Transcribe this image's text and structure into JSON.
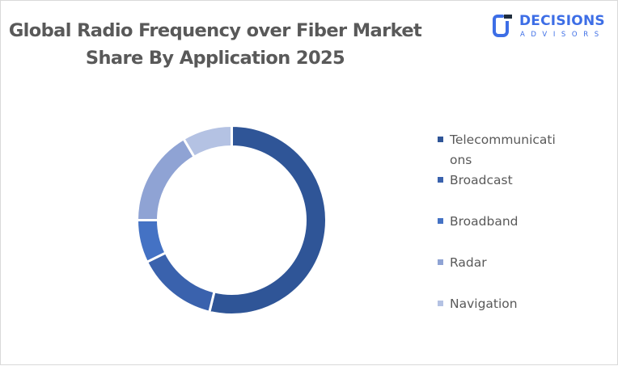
{
  "chart_data": {
    "type": "pie",
    "subtype": "donut",
    "title": "Global Radio Frequency over Fiber Market Share By Application 2025",
    "categories": [
      "Telecommunications",
      "Broadcast",
      "Broadband",
      "Radar",
      "Navigation"
    ],
    "values": [
      53.8,
      13.9,
      7.3,
      16.5,
      8.5
    ],
    "unit": "%",
    "colors": [
      "#2f5597",
      "#3a62ad",
      "#4472c4",
      "#8fa3d4",
      "#b4c2e3"
    ],
    "legend_position": "right",
    "data_labels": false
  },
  "header": {
    "title_line1": "Global Radio Frequency over Fiber Market",
    "title_line2": "Share By Application 2025"
  },
  "logo": {
    "name": "DECISIONS",
    "tagline": "ADVISORS",
    "color": "#3d6ee6"
  },
  "legend": {
    "items": [
      {
        "label": "Telecommunications",
        "color": "#2f5597"
      },
      {
        "label": "Broadcast",
        "color": "#3a62ad"
      },
      {
        "label": "Broadband",
        "color": "#4472c4"
      },
      {
        "label": "Radar",
        "color": "#8fa3d4"
      },
      {
        "label": "Navigation",
        "color": "#b4c2e3"
      }
    ]
  }
}
